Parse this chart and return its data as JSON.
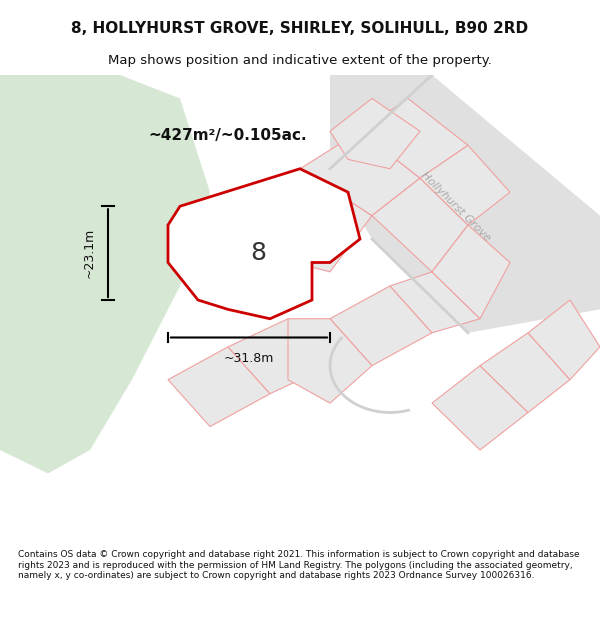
{
  "title": "8, HOLLYHURST GROVE, SHIRLEY, SOLIHULL, B90 2RD",
  "subtitle": "Map shows position and indicative extent of the property.",
  "footer": "Contains OS data © Crown copyright and database right 2021. This information is subject to Crown copyright and database rights 2023 and is reproduced with the permission of HM Land Registry. The polygons (including the associated geometry, namely x, y co-ordinates) are subject to Crown copyright and database rights 2023 Ordnance Survey 100026316.",
  "area_label": "~427m²/~0.105ac.",
  "width_label": "~31.8m",
  "height_label": "~23.1m",
  "number_label": "8",
  "bg_color": "#ffffff",
  "map_bg": "#f5f5f5",
  "green_area_color": "#d6e8d4",
  "road_label": "Hollyhurst Grove",
  "plot_outline_color": "#cc0000",
  "plot_fill_color": "#ffffff",
  "surrounding_fill": "#e8e8e8",
  "surrounding_stroke": "#f0a0a0",
  "road_color": "#e8e8e8"
}
